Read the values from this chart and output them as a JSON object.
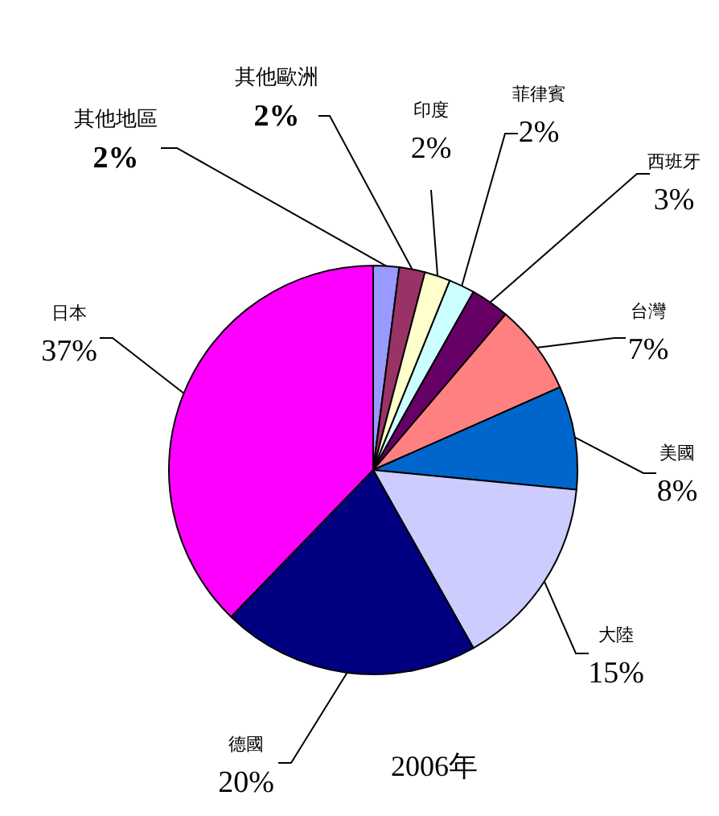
{
  "chart_data": {
    "type": "pie",
    "title": "2006年",
    "categories": [
      "其他地區",
      "其他歐洲",
      "印度",
      "菲律賓",
      "西班牙",
      "台灣",
      "美國",
      "大陸",
      "德國",
      "日本"
    ],
    "values": [
      2,
      2,
      2,
      2,
      3,
      7,
      8,
      15,
      20,
      37
    ],
    "value_labels": [
      "2%",
      "2%",
      "2%",
      "2%",
      "3%",
      "7%",
      "8%",
      "15%",
      "20%",
      "37%"
    ],
    "colors": [
      "#9999ff",
      "#993366",
      "#ffffcc",
      "#ccffff",
      "#660066",
      "#ff8080",
      "#0066cc",
      "#ccccff",
      "#000080",
      "#ff00ff"
    ]
  }
}
